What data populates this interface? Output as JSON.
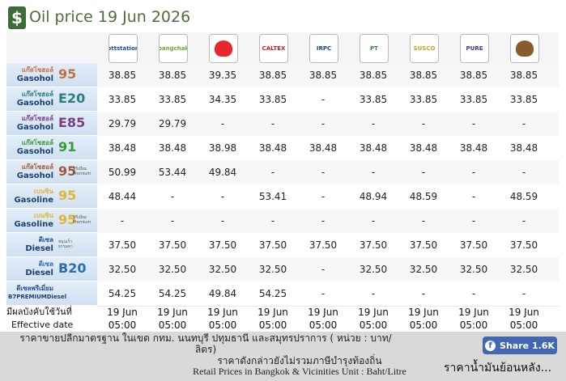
{
  "header": {
    "title": "Oil price 19 Jun 2026"
  },
  "logos": [
    {
      "text": "pttstation"
    },
    {
      "text": "bangchak"
    },
    {},
    {
      "text": "CALTEX"
    },
    {
      "text": "IRPC"
    },
    {
      "text": "PT"
    },
    {
      "text": "SUSCO"
    },
    {
      "text": "PURE"
    },
    {}
  ],
  "rows": [
    {
      "thai": "แก๊สโซฮอล์",
      "eng": "Gasohol",
      "grade": "95",
      "color": "#c4703f",
      "prices": [
        "38.85",
        "38.85",
        "39.35",
        "38.85",
        "38.85",
        "38.85",
        "38.85",
        "38.85",
        "38.85"
      ]
    },
    {
      "thai": "แก๊สโซฮอล์",
      "eng": "Gasohol",
      "grade": "E20",
      "color": "#2b7d86",
      "prices": [
        "33.85",
        "33.85",
        "34.35",
        "33.85",
        "-",
        "33.85",
        "33.85",
        "33.85",
        "33.85"
      ]
    },
    {
      "thai": "แก๊สโซฮอล์",
      "eng": "Gasohol",
      "grade": "E85",
      "color": "#7a3d86",
      "prices": [
        "29.79",
        "29.79",
        "-",
        "-",
        "-",
        "-",
        "-",
        "-",
        "-"
      ]
    },
    {
      "thai": "แก๊สโซฮอล์",
      "eng": "Gasohol",
      "grade": "91",
      "color": "#3a983a",
      "prices": [
        "38.48",
        "38.48",
        "38.98",
        "38.48",
        "38.48",
        "38.48",
        "38.48",
        "38.48",
        "38.48"
      ]
    },
    {
      "thai": "แก๊สโซฮอล์",
      "eng": "Gasohol",
      "grade": "95",
      "note": "พรีเมี่ยม Premium",
      "color": "#a8593a",
      "prices": [
        "50.99",
        "53.44",
        "49.84",
        "-",
        "-",
        "-",
        "-",
        "-",
        "-"
      ]
    },
    {
      "thai": "เบนซิน",
      "eng": "Gasoline",
      "grade": "95",
      "color": "#e2b43a",
      "prices": [
        "48.44",
        "-",
        "-",
        "53.41",
        "-",
        "48.94",
        "48.59",
        "-",
        "48.59"
      ]
    },
    {
      "thai": "เบนซิน",
      "eng": "Gasoline",
      "grade": "95",
      "note": "พรีเมี่ยม Premium",
      "color": "#e2b43a",
      "prices": [
        "-",
        "-",
        "-",
        "-",
        "-",
        "-",
        "-",
        "-",
        "-"
      ]
    },
    {
      "thai": "ดีเซล",
      "eng": "Diesel",
      "note": "หมุนเร็ว ธรรมดา",
      "color": "#1f4f8f",
      "prices": [
        "37.50",
        "37.50",
        "37.50",
        "37.50",
        "37.50",
        "37.50",
        "37.50",
        "37.50",
        "37.50"
      ]
    },
    {
      "thai": "ดีเซล",
      "eng": "Diesel",
      "grade": "B20",
      "color": "#2a6db0",
      "prices": [
        "32.50",
        "32.50",
        "32.50",
        "32.50",
        "-",
        "32.50",
        "32.50",
        "32.50",
        "32.50"
      ]
    },
    {
      "thai": "ดีเซลพรีเมี่ยม",
      "eng": "B7PREMIUMDiesel",
      "color": "#1f4f8f",
      "prices": [
        "54.25",
        "54.25",
        "49.84",
        "54.25",
        "-",
        "-",
        "-",
        "-",
        "-"
      ]
    }
  ],
  "effective": {
    "thai": "มีผลบังคับใช้วันที่",
    "eng": "Effective date",
    "dates": [
      "19 Jun",
      "19 Jun",
      "19 Jun",
      "19 Jun",
      "19 Jun",
      "19 Jun",
      "19 Jun",
      "19 Jun",
      "19 Jun"
    ],
    "times": [
      "05:00",
      "05:00",
      "05:00",
      "05:00",
      "05:00",
      "05:00",
      "05:00",
      "05:00",
      "05:00"
    ]
  },
  "footer": {
    "note_thai": "ราคาขายปลีกมาตรฐาน ในเขต กทม. นนทบุรี ปทุมธานี และสมุทรปราการ ( หน่วย : บาท/ลิตร)",
    "note_tax": "ราคาดังกล่าวยังไม่รวมภาษีบำรุงท้องถิ่น",
    "note_eng": "Retail Prices in Bangkok & Vicinities Unit : Baht/Litre",
    "share": "Share 1.6K",
    "history_link": "ราคาน้ำมันย้อนหลัง..."
  }
}
